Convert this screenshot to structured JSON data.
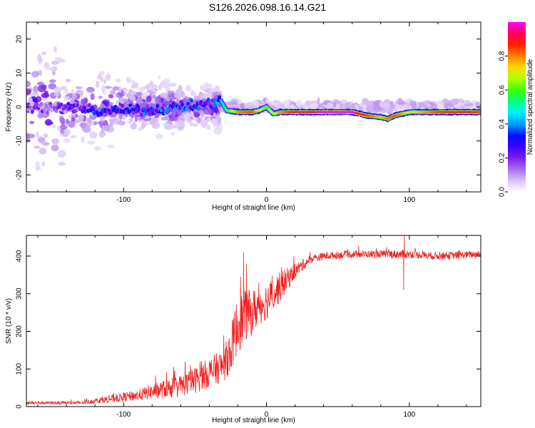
{
  "title": "S126.2026.098.16.14.G21",
  "colors": {
    "snr_line": "#ee2222",
    "colorbar_stops": [
      "#ffffff",
      "#d8c2f5",
      "#a66ef0",
      "#7a1fe8",
      "#3c00ff",
      "#0010ff",
      "#00a0ff",
      "#00f0ff",
      "#00ff80",
      "#40ff00",
      "#b0ff00",
      "#ffd800",
      "#ff8000",
      "#ff2000",
      "#ff0055",
      "#ff00ff"
    ]
  },
  "chart_data": [
    {
      "type": "heatmap",
      "name": "spectrogram",
      "xlabel": "Height of straight line (km)",
      "ylabel": "Frequency (Hz)",
      "xlim": [
        -168,
        150
      ],
      "ylim": [
        -25,
        25
      ],
      "xticks": [
        -100,
        0,
        100
      ],
      "xtick_labels": [
        "-100",
        "0",
        "100"
      ],
      "yticks": [
        -20,
        -10,
        0,
        10,
        20
      ],
      "ytick_labels": [
        "-20",
        "-10",
        "0",
        "10",
        "20"
      ],
      "colorbar": {
        "label": "Normalized spectral amplitude",
        "range": [
          0,
          1
        ],
        "ticks": [
          0.0,
          0.2,
          0.4,
          0.6,
          0.8
        ],
        "tick_labels": [
          "0.0",
          "0.2",
          "0.4",
          "0.6",
          "0.8"
        ]
      },
      "ridge": {
        "x": [
          -168,
          -140,
          -120,
          -100,
          -80,
          -60,
          -40,
          -32,
          -28,
          -20,
          -10,
          -5,
          0,
          5,
          10,
          20,
          30,
          40,
          60,
          70,
          80,
          85,
          90,
          100,
          120,
          140,
          150
        ],
        "y": [
          0,
          0,
          -1,
          -1,
          -1,
          0,
          1,
          2,
          -1,
          -1.5,
          -1.5,
          -1,
          0,
          -2,
          -1.5,
          -1.5,
          -1.5,
          -1.5,
          -1.5,
          -2.5,
          -3,
          -3.5,
          -2.5,
          -1.5,
          -1.5,
          -1.5,
          -1.5
        ],
        "amplitude": [
          0.2,
          0.25,
          0.35,
          0.35,
          0.4,
          0.4,
          0.35,
          0.45,
          0.55,
          0.8,
          0.85,
          0.7,
          0.6,
          0.7,
          0.8,
          0.9,
          0.9,
          1.0,
          1.0,
          0.85,
          0.75,
          0.8,
          0.85,
          0.7,
          0.85,
          0.9,
          0.85
        ]
      },
      "scatter_extent_hz": [
        {
          "x": [
            -168,
            -140
          ],
          "halfwidth": 22
        },
        {
          "x": [
            -140,
            -100
          ],
          "halfwidth": 12
        },
        {
          "x": [
            -100,
            -60
          ],
          "halfwidth": 9
        },
        {
          "x": [
            -60,
            -32
          ],
          "halfwidth": 7
        },
        {
          "x": [
            -32,
            150
          ],
          "halfwidth": 2
        }
      ]
    },
    {
      "type": "line",
      "name": "snr",
      "xlabel": "Height of straight line (km)",
      "ylabel": "SNR (10 * v/v)",
      "xlim": [
        -168,
        150
      ],
      "ylim": [
        0,
        455
      ],
      "xticks": [
        -100,
        0,
        100
      ],
      "xtick_labels": [
        "-100",
        "0",
        "100"
      ],
      "yticks": [
        0,
        100,
        200,
        300,
        400
      ],
      "ytick_labels": [
        "0",
        "100",
        "200",
        "300",
        "400"
      ],
      "envelope": {
        "x": [
          -168,
          -130,
          -110,
          -90,
          -80,
          -60,
          -50,
          -40,
          -30,
          -25,
          -20,
          -15,
          -10,
          -5,
          0,
          10,
          20,
          30,
          40,
          60,
          80,
          95,
          100,
          120,
          150
        ],
        "y": [
          10,
          10,
          20,
          30,
          40,
          55,
          70,
          90,
          110,
          150,
          220,
          240,
          250,
          270,
          280,
          320,
          360,
          390,
          400,
          405,
          405,
          405,
          405,
          400,
          405
        ],
        "noise": [
          4,
          4,
          10,
          15,
          20,
          30,
          35,
          40,
          45,
          60,
          80,
          70,
          60,
          55,
          50,
          40,
          20,
          12,
          10,
          10,
          10,
          12,
          10,
          10,
          10
        ]
      },
      "spikes": [
        {
          "x": -16,
          "y": 410
        },
        {
          "x": -14,
          "y": 380
        },
        {
          "x": 96,
          "y": 310
        },
        {
          "x": 96.5,
          "y": 455
        }
      ]
    }
  ]
}
